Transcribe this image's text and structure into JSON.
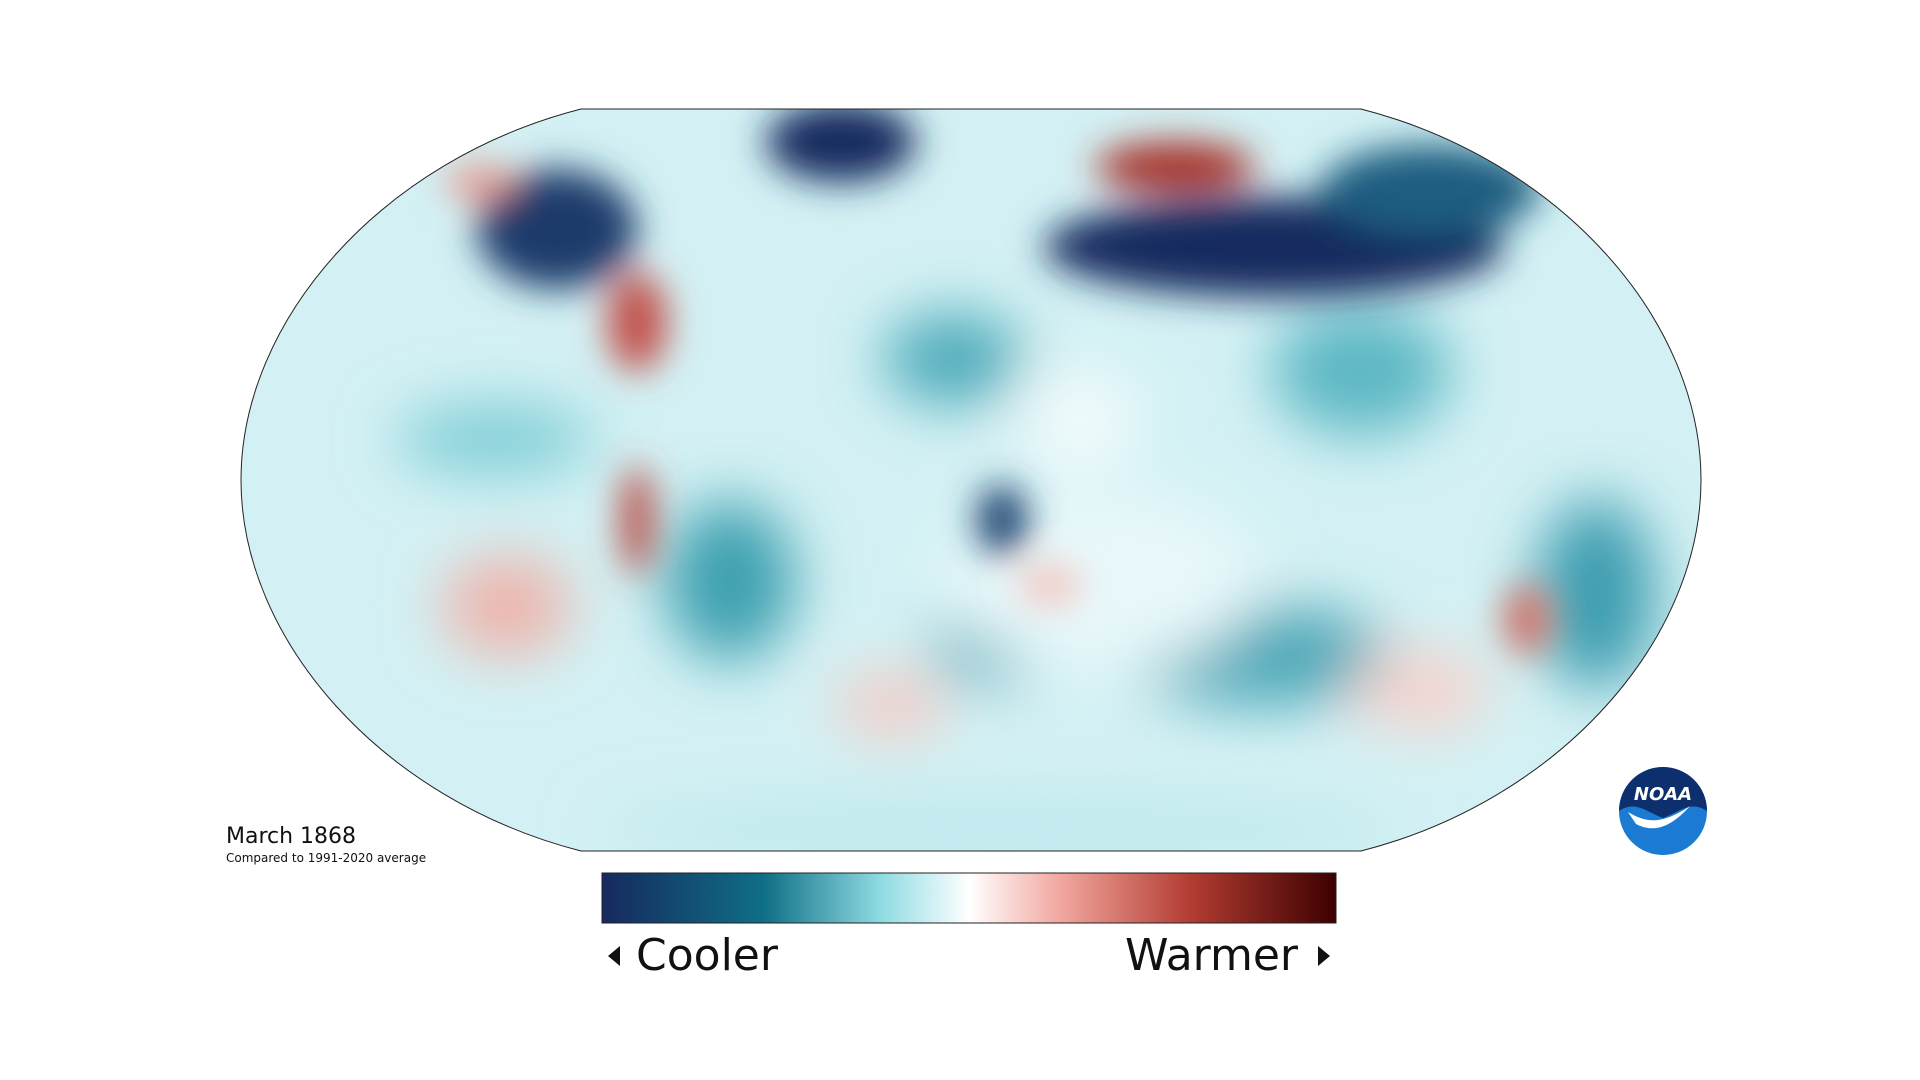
{
  "map": {
    "title": "March 1868",
    "subtitle": "Compared to 1991-2020 average",
    "legend": {
      "low_label": "Cooler",
      "high_label": "Warmer"
    },
    "logo": "NOAA"
  }
}
